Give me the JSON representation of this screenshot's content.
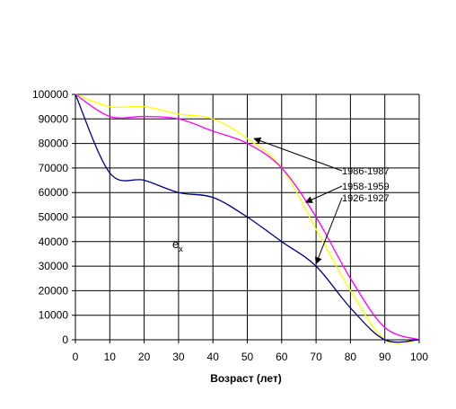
{
  "chart_data": {
    "type": "line",
    "title": "",
    "xlabel": "Возраст (лет)",
    "ylabel": "",
    "xlim": [
      0,
      100
    ],
    "ylim": [
      0,
      100000
    ],
    "x_ticks": [
      0,
      10,
      20,
      30,
      40,
      50,
      60,
      70,
      80,
      90,
      100
    ],
    "y_ticks": [
      0,
      10000,
      20000,
      30000,
      40000,
      50000,
      60000,
      70000,
      80000,
      90000,
      100000
    ],
    "grid": "horizontal and vertical",
    "series": [
      {
        "name": "1986-1987",
        "color": "#ffff00",
        "x": [
          0,
          10,
          20,
          30,
          40,
          50,
          60,
          70,
          80,
          90,
          100
        ],
        "y": [
          100000,
          95000,
          95000,
          92000,
          90000,
          82000,
          70000,
          45000,
          20000,
          0,
          0
        ]
      },
      {
        "name": "1958-1959",
        "color": "#ff00ff",
        "x": [
          0,
          10,
          20,
          30,
          40,
          50,
          60,
          70,
          80,
          90,
          100
        ],
        "y": [
          100000,
          91000,
          91000,
          90000,
          85000,
          80000,
          70000,
          50000,
          25000,
          5000,
          0
        ]
      },
      {
        "name": "1926-1927",
        "color": "#000080",
        "x": [
          0,
          10,
          20,
          30,
          40,
          50,
          60,
          70,
          80,
          90,
          100
        ],
        "y": [
          100000,
          68000,
          65000,
          60000,
          58000,
          50000,
          40000,
          30000,
          13000,
          0,
          0
        ]
      }
    ],
    "annotations": [
      {
        "label": "1986-1987",
        "arrow_to": [
          52,
          82000
        ]
      },
      {
        "label": "1958-1959",
        "arrow_to": [
          67,
          56000
        ]
      },
      {
        "label": "1926-1927",
        "arrow_to": [
          70,
          31000
        ]
      }
    ],
    "ex_label": {
      "main": "e",
      "sub": "x"
    }
  }
}
